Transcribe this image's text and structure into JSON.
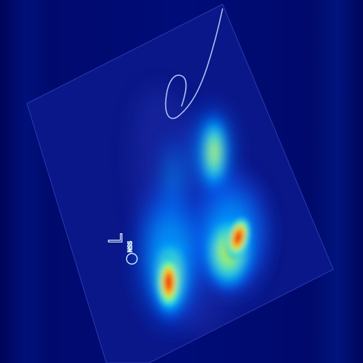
{
  "image": {
    "kind": "x-ray-heatmap-overlay",
    "colormap": "jet",
    "background_color": "#000868",
    "film_color": "#0c1a8f",
    "marker_text": "L",
    "marker_sub_text": "NSS"
  }
}
